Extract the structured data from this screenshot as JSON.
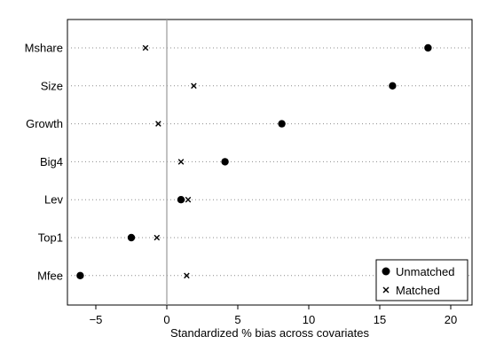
{
  "chart_data": {
    "type": "scatter",
    "xlabel": "Standardized % bias across covariates",
    "xlim": [
      -7,
      21.5
    ],
    "xticks": [
      -5,
      0,
      5,
      10,
      15,
      20
    ],
    "xtick_labels": [
      "−5",
      "0",
      "5",
      "10",
      "15",
      "20"
    ],
    "categories": [
      "Mshare",
      "Size",
      "Growth",
      "Big4",
      "Lev",
      "Top1",
      "Mfee"
    ],
    "reference_line_x": 0,
    "grid": "dotted horizontal lines per covariate",
    "legend_position": "bottom-right",
    "series": [
      {
        "name": "Unmatched",
        "marker": "filled-circle",
        "values": [
          18.4,
          15.9,
          8.1,
          4.1,
          1.0,
          -2.5,
          -6.1
        ]
      },
      {
        "name": "Matched",
        "marker": "x-cross",
        "values": [
          -1.5,
          1.9,
          -0.6,
          1.0,
          1.5,
          -0.7,
          1.4
        ]
      }
    ]
  }
}
